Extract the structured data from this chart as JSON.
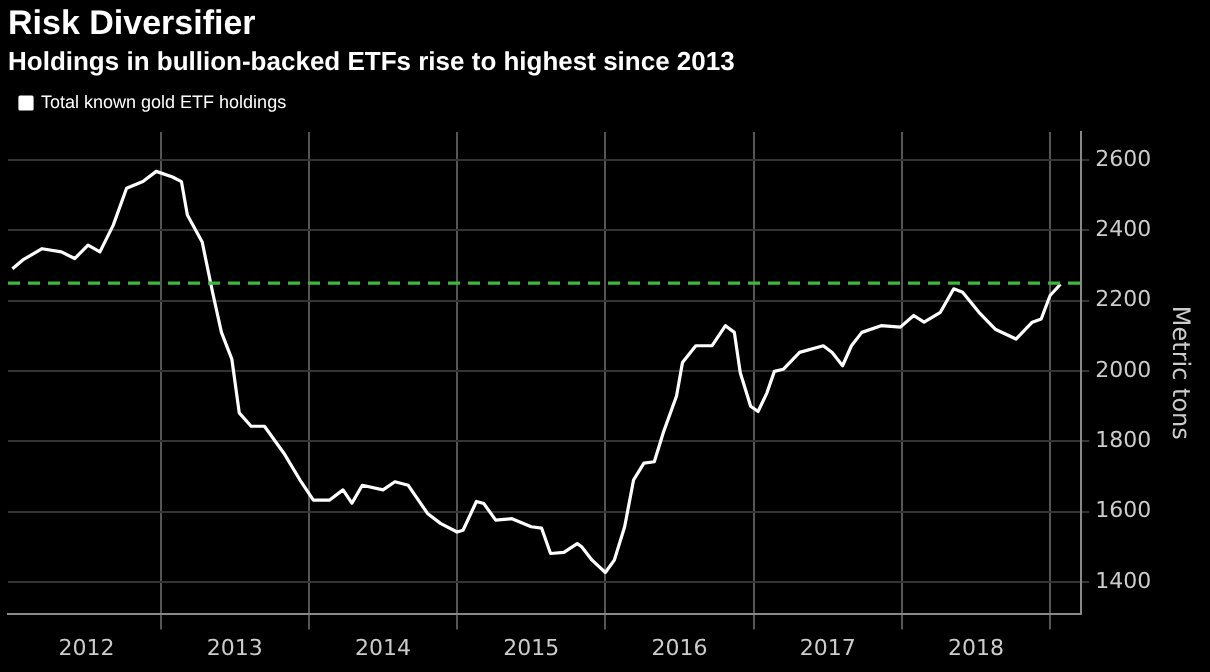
{
  "chart_data": {
    "type": "line",
    "title": "Risk Diversifier",
    "subtitle": "Holdings in bullion-backed ETFs rise to highest since 2013",
    "ylabel": "Metric tons",
    "x": [
      2012.0,
      2012.07,
      2012.2,
      2012.33,
      2012.42,
      2012.51,
      2012.59,
      2012.68,
      2012.77,
      2012.88,
      2012.97,
      2013.08,
      2013.14,
      2013.18,
      2013.28,
      2013.35,
      2013.41,
      2013.48,
      2013.53,
      2013.61,
      2013.7,
      2013.83,
      2013.94,
      2014.03,
      2014.14,
      2014.23,
      2014.29,
      2014.36,
      2014.5,
      2014.58,
      2014.67,
      2014.8,
      2014.89,
      2015.0,
      2015.04,
      2015.13,
      2015.18,
      2015.26,
      2015.37,
      2015.5,
      2015.57,
      2015.63,
      2015.72,
      2015.81,
      2015.84,
      2015.91,
      2016.0,
      2016.06,
      2016.13,
      2016.19,
      2016.26,
      2016.33,
      2016.39,
      2016.48,
      2016.52,
      2016.61,
      2016.72,
      2016.81,
      2016.87,
      2016.91,
      2016.98,
      2017.03,
      2017.09,
      2017.14,
      2017.2,
      2017.31,
      2017.47,
      2017.53,
      2017.6,
      2017.66,
      2017.73,
      2017.86,
      2017.99,
      2018.08,
      2018.15,
      2018.26,
      2018.35,
      2018.41,
      2018.52,
      2018.63,
      2018.77,
      2018.88,
      2018.94,
      2019.0,
      2019.07
    ],
    "series": [
      {
        "name": "Total known gold ETF holdings",
        "color": "#ffffff",
        "values": [
          2291,
          2316,
          2348,
          2339,
          2320,
          2358,
          2339,
          2415,
          2520,
          2539,
          2568,
          2552,
          2539,
          2444,
          2367,
          2224,
          2110,
          2034,
          1881,
          1843,
          1843,
          1767,
          1690,
          1633,
          1633,
          1662,
          1624,
          1675,
          1662,
          1685,
          1675,
          1595,
          1566,
          1542,
          1547,
          1629,
          1623,
          1576,
          1580,
          1557,
          1553,
          1481,
          1484,
          1509,
          1500,
          1462,
          1427,
          1462,
          1557,
          1690,
          1738,
          1742,
          1824,
          1929,
          2024,
          2072,
          2072,
          2129,
          2110,
          1995,
          1900,
          1885,
          1938,
          1999,
          2005,
          2053,
          2072,
          2053,
          2015,
          2072,
          2110,
          2129,
          2125,
          2158,
          2139,
          2167,
          2234,
          2224,
          2167,
          2119,
          2091,
          2139,
          2148,
          2215,
          2247
        ]
      }
    ],
    "xlim": [
      2011.97,
      2019.21
    ],
    "xticks": [
      {
        "value": 2013,
        "label": null
      },
      {
        "value": 2014,
        "label": null
      },
      {
        "value": 2015,
        "label": null
      },
      {
        "value": 2016,
        "label": null
      },
      {
        "value": 2017,
        "label": null
      },
      {
        "value": 2018,
        "label": null
      },
      {
        "value": 2019,
        "label": null
      },
      {
        "value": 2012.5,
        "label": "2012"
      },
      {
        "value": 2013.5,
        "label": "2013"
      },
      {
        "value": 2014.5,
        "label": "2014"
      },
      {
        "value": 2015.5,
        "label": "2015"
      },
      {
        "value": 2016.5,
        "label": "2016"
      },
      {
        "value": 2017.5,
        "label": "2017"
      },
      {
        "value": 2018.5,
        "label": "2018"
      }
    ],
    "ylim": [
      1310,
      2680
    ],
    "yticks": [
      1400,
      1600,
      1800,
      2000,
      2200,
      2400,
      2600
    ],
    "ref_lines": [
      {
        "axis": "y",
        "value": 2250,
        "color": "#3cb83c",
        "line_style": "dashed"
      }
    ],
    "grid": true,
    "legend": "top left",
    "marker": "none",
    "line_style": "solid"
  }
}
